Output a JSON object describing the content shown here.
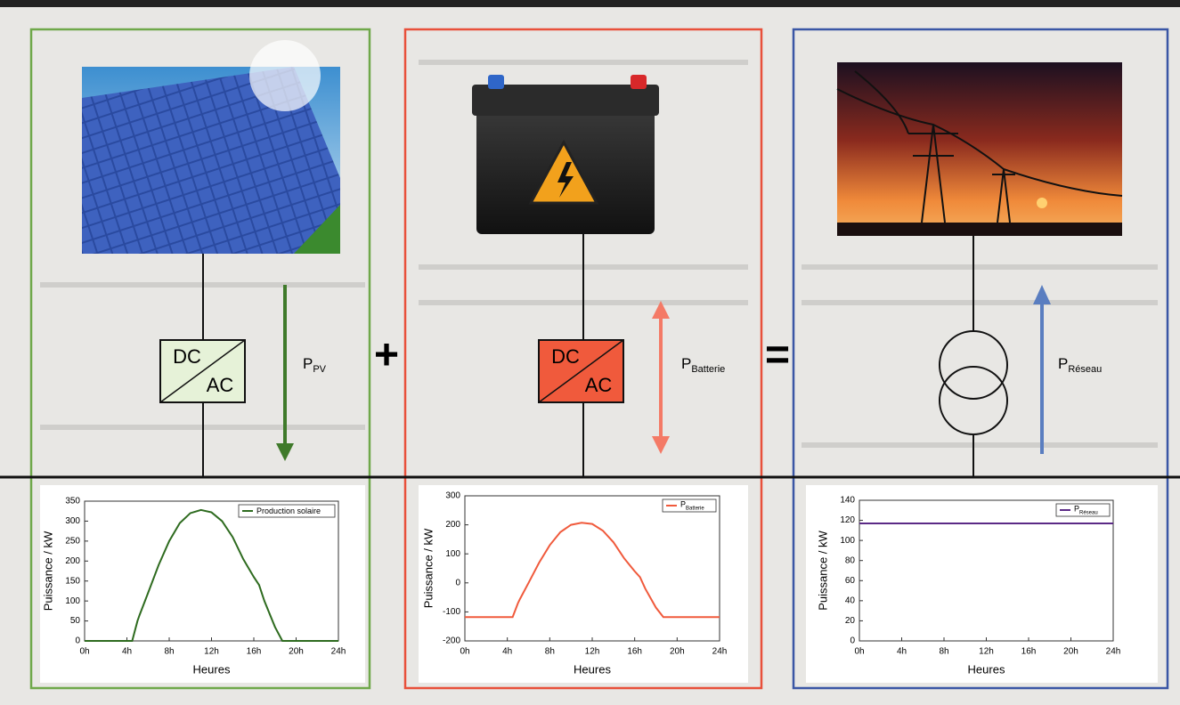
{
  "diagram": {
    "plus": "+",
    "equals": "=",
    "converters": [
      {
        "top": "DC",
        "bottom": "AC"
      },
      {
        "top": "DC",
        "bottom": "AC"
      }
    ],
    "flows": [
      {
        "main": "P",
        "sub": "PV"
      },
      {
        "main": "P",
        "sub": "Batterie"
      },
      {
        "main": "P",
        "sub": "Réseau"
      }
    ]
  },
  "chart_data": [
    {
      "type": "line",
      "xlabel": "Heures",
      "ylabel": "Puissance / kW",
      "x": [
        0,
        4.5,
        5,
        5.2,
        6,
        7,
        8,
        9,
        10,
        11,
        12,
        13,
        14,
        15,
        16,
        16.5,
        17,
        18,
        18.7,
        24
      ],
      "xlim": [
        0,
        24
      ],
      "xticks": [
        {
          "value": 0,
          "label": "0h"
        },
        {
          "value": 4,
          "label": "4h"
        },
        {
          "value": 8,
          "label": "8h"
        },
        {
          "value": 12,
          "label": "12h"
        },
        {
          "value": 16,
          "label": "16h"
        },
        {
          "value": 20,
          "label": "20h"
        },
        {
          "value": 24,
          "label": "24h"
        }
      ],
      "ylim": [
        0,
        350
      ],
      "yticks": [
        0,
        50,
        100,
        150,
        200,
        250,
        300,
        350
      ],
      "series": [
        {
          "name": "Production solaire",
          "color": "#2e6b1f",
          "values": [
            0,
            0,
            50,
            65,
            120,
            190,
            250,
            295,
            320,
            328,
            322,
            300,
            260,
            205,
            160,
            140,
            100,
            35,
            0,
            0
          ]
        }
      ]
    },
    {
      "type": "line",
      "xlabel": "Heures",
      "ylabel": "Puissance / kW",
      "x": [
        0,
        4.5,
        5,
        5.2,
        6,
        7,
        8,
        9,
        10,
        11,
        12,
        13,
        14,
        15,
        16,
        16.5,
        17,
        18,
        18.7,
        24
      ],
      "xlim": [
        0,
        24
      ],
      "xticks": [
        {
          "value": 0,
          "label": "0h"
        },
        {
          "value": 4,
          "label": "4h"
        },
        {
          "value": 8,
          "label": "8h"
        },
        {
          "value": 12,
          "label": "12h"
        },
        {
          "value": 16,
          "label": "16h"
        },
        {
          "value": 20,
          "label": "20h"
        },
        {
          "value": 24,
          "label": "24h"
        }
      ],
      "ylim": [
        -200,
        300
      ],
      "yticks": [
        -200,
        -100,
        0,
        100,
        200,
        300
      ],
      "series": [
        {
          "name": {
            "main": "P",
            "sub": "Batterie"
          },
          "color": "#f05a3c",
          "values": [
            -118,
            -118,
            -70,
            -55,
            0,
            70,
            130,
            175,
            200,
            207,
            203,
            180,
            140,
            85,
            40,
            20,
            -20,
            -85,
            -118,
            -118
          ]
        }
      ]
    },
    {
      "type": "line",
      "xlabel": "Heures",
      "ylabel": "Puissance / kW",
      "x": [
        0,
        24
      ],
      "xlim": [
        0,
        24
      ],
      "xticks": [
        {
          "value": 0,
          "label": "0h"
        },
        {
          "value": 4,
          "label": "4h"
        },
        {
          "value": 8,
          "label": "8h"
        },
        {
          "value": 12,
          "label": "12h"
        },
        {
          "value": 16,
          "label": "16h"
        },
        {
          "value": 20,
          "label": "20h"
        },
        {
          "value": 24,
          "label": "24h"
        }
      ],
      "ylim": [
        0,
        140
      ],
      "yticks": [
        0,
        20,
        40,
        60,
        80,
        100,
        120,
        140
      ],
      "series": [
        {
          "name": {
            "main": "P",
            "sub": "Réseau"
          },
          "color": "#5b2a86",
          "values": [
            117,
            117
          ]
        }
      ]
    }
  ]
}
